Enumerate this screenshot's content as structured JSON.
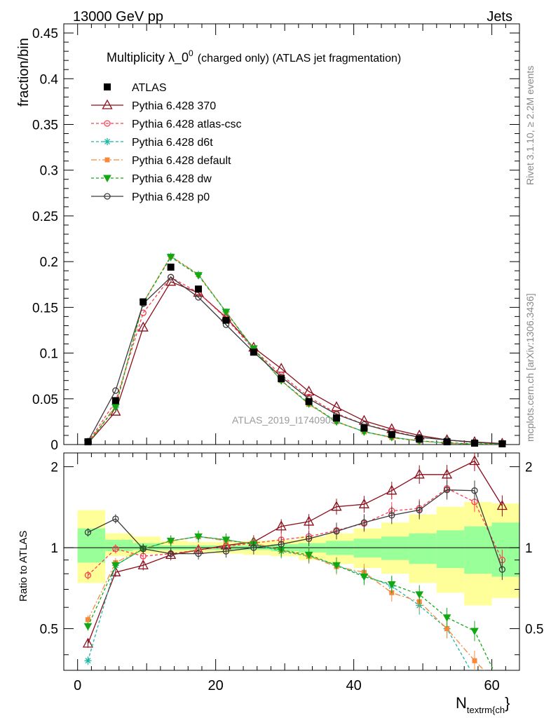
{
  "header": {
    "left": "13000 GeV pp",
    "right": "Jets"
  },
  "side_labels": {
    "rivet": "Rivet 3.1.10, ≥ 2.2M events",
    "mcplots": "mcplots.cern.ch [arXiv:1306.3436]"
  },
  "watermark": "ATLAS_2019_I1740909",
  "chart_data": {
    "type": "line",
    "title_main": "Multiplicity λ_0",
    "title_sup": "0",
    "title_rest": "(charged only) (ATLAS jet fragmentation)",
    "ylabel": "fraction/bin",
    "ratio_ylabel": "Ratio to ATLAS",
    "xlabel_main": "N",
    "xlabel_sub": "textrm{ch",
    "xlabel_end": "}",
    "xlim": [
      -2,
      64
    ],
    "ylim": [
      0,
      0.46
    ],
    "ratio_ylim": [
      0.35,
      2.25
    ],
    "ratio_log": true,
    "x_ticks": [
      0,
      20,
      40,
      60
    ],
    "y_ticks": [
      0,
      0.05,
      0.1,
      0.15,
      0.2,
      0.25,
      0.3,
      0.35,
      0.4,
      0.45
    ],
    "y_tick_labels": [
      "0",
      "0.05",
      "0.1",
      "0.15",
      "0.2",
      "0.25",
      "0.3",
      "0.35",
      "0.4",
      "0.45"
    ],
    "ratio_ticks": [
      0.5,
      1,
      2
    ],
    "ratio_tick_labels": [
      "0.5",
      "1",
      "2"
    ],
    "bin_edges": [
      0,
      4,
      8,
      12,
      16,
      20,
      24,
      28,
      32,
      36,
      40,
      44,
      48,
      52,
      56,
      60,
      64
    ],
    "x": [
      1.5,
      5.5,
      9.5,
      13.5,
      17.5,
      21.5,
      25.5,
      29.5,
      33.5,
      37.5,
      41.5,
      45.5,
      49.5,
      53.5,
      57.5,
      61.5
    ],
    "data": {
      "name": "ATLAS",
      "values": [
        0.003,
        0.048,
        0.156,
        0.194,
        0.17,
        0.136,
        0.101,
        0.072,
        0.047,
        0.029,
        0.018,
        0.011,
        0.006,
        0.003,
        0.0015,
        0.0008
      ],
      "band_yellow_lo": [
        0.74,
        0.93,
        0.95,
        0.95,
        0.96,
        0.95,
        0.94,
        0.93,
        0.9,
        0.87,
        0.84,
        0.8,
        0.74,
        0.68,
        0.61,
        0.65
      ],
      "band_yellow_hi": [
        1.38,
        1.13,
        1.1,
        1.06,
        1.05,
        1.05,
        1.06,
        1.07,
        1.1,
        1.13,
        1.18,
        1.24,
        1.33,
        1.42,
        1.48,
        1.46
      ],
      "band_green_lo": [
        0.88,
        0.97,
        0.98,
        0.98,
        0.98,
        0.98,
        0.98,
        0.97,
        0.96,
        0.94,
        0.92,
        0.9,
        0.87,
        0.84,
        0.8,
        0.78
      ],
      "band_green_hi": [
        1.18,
        1.07,
        1.04,
        1.02,
        1.02,
        1.02,
        1.02,
        1.03,
        1.04,
        1.06,
        1.08,
        1.1,
        1.13,
        1.16,
        1.2,
        1.24
      ]
    },
    "series": [
      {
        "name": "Pythia 6.428 370",
        "color": "#8b0d1a",
        "dash": "",
        "marker": "triangle",
        "values": [
          0.0013,
          0.036,
          0.128,
          0.178,
          0.166,
          0.139,
          0.106,
          0.083,
          0.058,
          0.041,
          0.026,
          0.017,
          0.01,
          0.005,
          0.0028,
          0.0011
        ],
        "ratio": [
          0.44,
          0.81,
          0.86,
          0.94,
          0.98,
          1.02,
          1.05,
          1.2,
          1.25,
          1.42,
          1.45,
          1.63,
          1.87,
          1.87,
          2.1,
          1.43
        ]
      },
      {
        "name": "Pythia 6.428 atlas-csc",
        "color": "#ff3b4f",
        "dash": "4,3",
        "marker": "circle-open",
        "values": [
          0.0024,
          0.047,
          0.144,
          0.183,
          0.166,
          0.138,
          0.104,
          0.076,
          0.052,
          0.034,
          0.022,
          0.015,
          0.008,
          0.005,
          0.002,
          0.0007
        ],
        "ratio": [
          0.79,
          0.99,
          0.93,
          0.95,
          0.98,
          1.01,
          1.04,
          1.07,
          1.1,
          1.16,
          1.23,
          1.37,
          1.4,
          1.66,
          1.48,
          0.9
        ]
      },
      {
        "name": "Pythia 6.428 d6t",
        "color": "#17b8a2",
        "dash": "4,3",
        "marker": "star",
        "values": [
          0.0012,
          0.041,
          0.155,
          0.206,
          0.186,
          0.145,
          0.104,
          0.07,
          0.044,
          0.025,
          0.014,
          0.008,
          0.004,
          0.0015,
          0.0005,
          0.0002
        ],
        "ratio": [
          0.38,
          0.86,
          0.99,
          1.06,
          1.1,
          1.07,
          1.03,
          0.97,
          0.93,
          0.86,
          0.79,
          0.72,
          0.61,
          0.5,
          0.33,
          0.3
        ]
      },
      {
        "name": "Pythia 6.428 default",
        "color": "#f7893a",
        "dash": "8,3,2,3",
        "marker": "square",
        "values": [
          0.0016,
          0.042,
          0.155,
          0.206,
          0.186,
          0.145,
          0.105,
          0.07,
          0.044,
          0.025,
          0.014,
          0.0075,
          0.0038,
          0.0016,
          0.0006,
          0.0002
        ],
        "ratio": [
          0.54,
          0.88,
          0.99,
          1.06,
          1.1,
          1.06,
          1.04,
          0.98,
          0.93,
          0.85,
          0.81,
          0.68,
          0.63,
          0.5,
          0.38,
          0.3
        ]
      },
      {
        "name": "Pythia 6.428 dw",
        "color": "#13a813",
        "dash": "4,3",
        "marker": "triangle-down",
        "values": [
          0.0015,
          0.041,
          0.155,
          0.205,
          0.185,
          0.145,
          0.105,
          0.07,
          0.045,
          0.025,
          0.014,
          0.008,
          0.004,
          0.002,
          0.0007,
          0.0002
        ],
        "ratio": [
          0.51,
          0.86,
          0.99,
          1.06,
          1.1,
          1.07,
          1.03,
          0.98,
          0.94,
          0.86,
          0.78,
          0.73,
          0.67,
          0.55,
          0.49,
          0.3
        ]
      },
      {
        "name": "Pythia 6.428 p0",
        "color": "#3a3a3a",
        "dash": "",
        "marker": "circle-open",
        "values": [
          0.0035,
          0.059,
          0.154,
          0.183,
          0.161,
          0.131,
          0.101,
          0.074,
          0.05,
          0.033,
          0.022,
          0.014,
          0.008,
          0.005,
          0.0025,
          0.0007
        ],
        "ratio": [
          1.14,
          1.28,
          0.99,
          0.95,
          0.95,
          0.97,
          1.0,
          1.03,
          1.08,
          1.15,
          1.24,
          1.32,
          1.38,
          1.64,
          1.63,
          0.83
        ]
      }
    ]
  }
}
